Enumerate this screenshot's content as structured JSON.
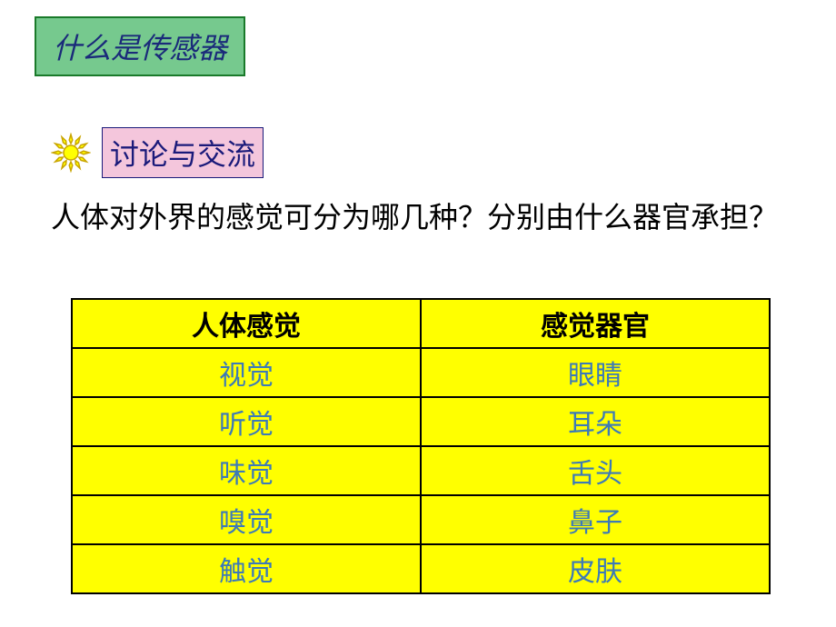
{
  "title": {
    "text": "什么是传感器",
    "bg_color": "#76c98e",
    "border_color": "#1a7a2a",
    "text_color": "#1a2a7a"
  },
  "section": {
    "label": "讨论与交流",
    "bg_color": "#f4c6dc",
    "border_color": "#1a1a7a",
    "text_color": "#1a1a7a",
    "sun_stroke": "#c9a500",
    "sun_fill": "#ffff00"
  },
  "question": {
    "text": "人体对外界的感觉可分为哪几种？分别由什么器官承担？",
    "color": "#000000"
  },
  "table": {
    "bg_color": "#ffff00",
    "border_color": "#000000",
    "border_width": 2,
    "header_color": "#000000",
    "cell_color": "#3c7ab8",
    "columns": [
      "人体感觉",
      "感觉器官"
    ],
    "rows": [
      [
        "视觉",
        "眼睛"
      ],
      [
        "听觉",
        "耳朵"
      ],
      [
        "味觉",
        "舌头"
      ],
      [
        "嗅觉",
        "鼻子"
      ],
      [
        "触觉",
        "皮肤"
      ]
    ]
  }
}
